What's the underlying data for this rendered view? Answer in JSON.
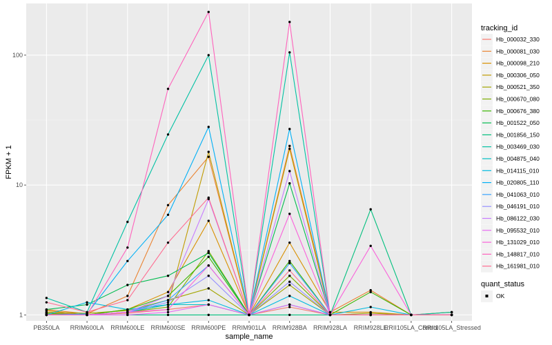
{
  "chart_data": {
    "type": "line",
    "xlabel": "sample_name",
    "ylabel": "FPKM + 1",
    "y_scale": "log10",
    "ylim": [
      0.9,
      250
    ],
    "y_ticks": [
      1,
      10,
      100
    ],
    "y_tick_labels": [
      "1",
      "10",
      "100"
    ],
    "grid": true,
    "legend_position": "right",
    "categories": [
      "PB350LA",
      "RRIM600LA",
      "RRIM600LE",
      "RRIM600SE",
      "RRIM600PE",
      "RRIM901LA",
      "RRIM928BA",
      "RRIM928LA",
      "RRIM928LE",
      "RRII105LA_Control",
      "RRII105LA_Stressed"
    ],
    "legend": {
      "title": "tracking_id",
      "entries": [
        "Hb_000032_330",
        "Hb_000081_030",
        "Hb_000098_210",
        "Hb_000306_050",
        "Hb_000521_350",
        "Hb_000670_080",
        "Hb_000676_380",
        "Hb_001522_050",
        "Hb_001856_150",
        "Hb_003469_030",
        "Hb_004875_040",
        "Hb_014115_010",
        "Hb_020805_110",
        "Hb_041063_010",
        "Hb_046191_010",
        "Hb_086122_030",
        "Hb_095532_010",
        "Hb_131029_010",
        "Hb_148817_010",
        "Hb_161981_010"
      ],
      "colors": [
        "#F8766D",
        "#EA8331",
        "#D89000",
        "#C09B00",
        "#A3A500",
        "#7CAE00",
        "#39B600",
        "#00BB4E",
        "#00BF7D",
        "#00C1A3",
        "#00BFC4",
        "#00BAE0",
        "#00B0F6",
        "#35A2FF",
        "#9590FF",
        "#C77CFF",
        "#E76BF3",
        "#FA62DB",
        "#FF62BC",
        "#FF6C91"
      ]
    },
    "shape_legend": {
      "title": "quant_status",
      "entries": [
        "OK"
      ]
    },
    "series": [
      {
        "name": "Hb_000032_330",
        "values": [
          1.05,
          1.0,
          1.03,
          1.1,
          1.2,
          1.0,
          1.15,
          1.0,
          1.0,
          1.0,
          1.0
        ]
      },
      {
        "name": "Hb_000081_030",
        "values": [
          1.1,
          1.02,
          1.4,
          7.0,
          16.5,
          1.0,
          20.0,
          1.05,
          1.55,
          1.0,
          1.05
        ]
      },
      {
        "name": "Hb_000098_210",
        "values": [
          1.08,
          1.0,
          1.1,
          1.5,
          5.3,
          1.0,
          3.6,
          1.05,
          1.05,
          1.0,
          1.05
        ]
      },
      {
        "name": "Hb_000306_050",
        "values": [
          1.02,
          1.0,
          1.05,
          1.2,
          18.0,
          1.0,
          19.0,
          1.0,
          1.0,
          1.0,
          1.0
        ]
      },
      {
        "name": "Hb_000521_350",
        "values": [
          1.05,
          1.03,
          1.08,
          1.3,
          1.6,
          1.0,
          1.7,
          1.0,
          1.03,
          1.0,
          1.0
        ]
      },
      {
        "name": "Hb_000670_080",
        "values": [
          1.0,
          1.0,
          1.05,
          1.15,
          3.1,
          1.0,
          2.0,
          1.0,
          1.0,
          1.0,
          1.0
        ]
      },
      {
        "name": "Hb_000676_380",
        "values": [
          1.03,
          1.0,
          1.1,
          1.4,
          2.8,
          1.0,
          2.6,
          1.0,
          1.5,
          1.0,
          1.0
        ]
      },
      {
        "name": "Hb_001522_050",
        "values": [
          1.1,
          1.2,
          1.7,
          2.0,
          3.0,
          1.0,
          10.3,
          1.0,
          1.0,
          1.0,
          1.0
        ]
      },
      {
        "name": "Hb_001856_150",
        "values": [
          1.0,
          1.0,
          1.0,
          1.0,
          1.0,
          1.0,
          1.0,
          1.0,
          6.5,
          1.0,
          1.0
        ]
      },
      {
        "name": "Hb_003469_030",
        "values": [
          1.35,
          1.05,
          5.2,
          24.5,
          100.0,
          1.0,
          105.0,
          1.0,
          1.0,
          1.0,
          1.05
        ]
      },
      {
        "name": "Hb_004875_040",
        "values": [
          1.0,
          1.0,
          1.05,
          1.2,
          1.2,
          1.0,
          1.2,
          1.0,
          1.0,
          1.0,
          1.0
        ]
      },
      {
        "name": "Hb_014115_010",
        "values": [
          1.0,
          1.25,
          1.1,
          1.2,
          1.3,
          1.0,
          1.4,
          1.0,
          1.15,
          1.0,
          1.0
        ]
      },
      {
        "name": "Hb_020805_110",
        "values": [
          1.0,
          1.02,
          2.6,
          5.9,
          28.0,
          1.0,
          27.0,
          1.0,
          1.0,
          1.0,
          1.0
        ]
      },
      {
        "name": "Hb_041063_010",
        "values": [
          1.0,
          1.0,
          1.05,
          1.3,
          2.4,
          1.0,
          2.5,
          1.0,
          1.0,
          1.0,
          1.0
        ]
      },
      {
        "name": "Hb_046191_010",
        "values": [
          1.0,
          1.0,
          1.05,
          1.25,
          2.0,
          1.0,
          1.8,
          1.0,
          1.0,
          1.0,
          1.0
        ]
      },
      {
        "name": "Hb_086122_030",
        "values": [
          1.0,
          1.0,
          1.05,
          1.4,
          7.8,
          1.0,
          12.8,
          1.0,
          1.0,
          1.0,
          1.0
        ]
      },
      {
        "name": "Hb_095532_010",
        "values": [
          1.0,
          1.0,
          1.0,
          1.05,
          1.2,
          1.0,
          1.2,
          1.0,
          1.0,
          1.0,
          1.0
        ]
      },
      {
        "name": "Hb_131029_010",
        "values": [
          1.0,
          1.0,
          1.05,
          1.1,
          2.4,
          1.0,
          6.0,
          1.0,
          3.4,
          1.0,
          1.0
        ]
      },
      {
        "name": "Hb_148817_010",
        "values": [
          1.0,
          1.0,
          3.3,
          55.0,
          215.0,
          1.0,
          180.0,
          1.0,
          1.0,
          1.0,
          1.0
        ]
      },
      {
        "name": "Hb_161981_010",
        "values": [
          1.25,
          1.05,
          1.3,
          3.6,
          8.0,
          1.0,
          2.2,
          1.0,
          1.0,
          1.0,
          1.0
        ]
      }
    ]
  }
}
